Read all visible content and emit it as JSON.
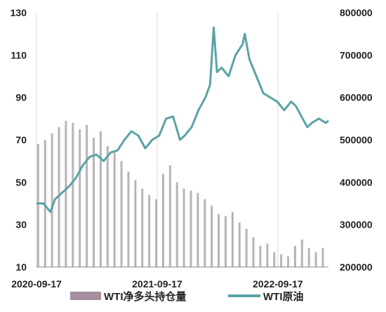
{
  "chart_data": {
    "type": "line",
    "title": "",
    "xlabel": "",
    "ylabel": "",
    "x_tick_labels": [
      "2020-09-17",
      "2021-09-17",
      "2022-09-17"
    ],
    "x_range": [
      "2020-09-17",
      "2023-02-17"
    ],
    "y_left": {
      "ticks": [
        10,
        30,
        50,
        70,
        90,
        110,
        130
      ],
      "range": [
        10,
        130
      ]
    },
    "y_right": {
      "ticks": [
        200000,
        300000,
        400000,
        500000,
        600000,
        700000,
        800000
      ],
      "range": [
        200000,
        800000
      ]
    },
    "grid": "vertical",
    "legend_position": "bottom",
    "colors": {
      "bar": "#b9b2b9",
      "bar_legend": "#a38f9f",
      "line": "#5aa3a6"
    },
    "series": [
      {
        "name": "WTI净多头持仓量",
        "type": "bar",
        "axis": "right",
        "x": [
          "2020-09-22",
          "2020-10-13",
          "2020-11-03",
          "2020-11-24",
          "2020-12-15",
          "2021-01-05",
          "2021-01-26",
          "2021-02-16",
          "2021-03-09",
          "2021-03-30",
          "2021-04-20",
          "2021-05-11",
          "2021-06-01",
          "2021-06-22",
          "2021-07-13",
          "2021-08-03",
          "2021-08-24",
          "2021-09-14",
          "2021-10-05",
          "2021-10-26",
          "2021-11-16",
          "2021-12-07",
          "2021-12-28",
          "2022-01-18",
          "2022-02-08",
          "2022-03-01",
          "2022-03-22",
          "2022-04-12",
          "2022-05-03",
          "2022-05-24",
          "2022-06-14",
          "2022-07-05",
          "2022-07-26",
          "2022-08-16",
          "2022-09-06",
          "2022-09-27",
          "2022-10-18",
          "2022-11-08",
          "2022-11-29",
          "2022-12-20",
          "2023-01-10",
          "2023-01-31"
        ],
        "values": [
          490000,
          500000,
          515000,
          530000,
          545000,
          540000,
          525000,
          535000,
          505000,
          520000,
          485000,
          470000,
          450000,
          425000,
          405000,
          385000,
          370000,
          360000,
          420000,
          440000,
          400000,
          385000,
          380000,
          375000,
          360000,
          345000,
          325000,
          320000,
          330000,
          305000,
          290000,
          270000,
          250000,
          255000,
          235000,
          230000,
          225000,
          250000,
          265000,
          245000,
          235000,
          245000
        ]
      },
      {
        "name": "WTI原油",
        "type": "line",
        "axis": "left",
        "x": [
          "2020-09-17",
          "2020-10-08",
          "2020-10-29",
          "2020-11-12",
          "2020-12-03",
          "2020-12-24",
          "2021-01-14",
          "2021-02-04",
          "2021-02-25",
          "2021-03-18",
          "2021-04-08",
          "2021-04-29",
          "2021-05-20",
          "2021-06-10",
          "2021-07-01",
          "2021-07-22",
          "2021-08-12",
          "2021-09-02",
          "2021-09-23",
          "2021-10-14",
          "2021-11-04",
          "2021-11-25",
          "2021-12-09",
          "2021-12-30",
          "2022-01-20",
          "2022-02-10",
          "2022-02-24",
          "2022-03-07",
          "2022-03-17",
          "2022-03-31",
          "2022-04-21",
          "2022-05-12",
          "2022-06-02",
          "2022-06-09",
          "2022-06-23",
          "2022-07-14",
          "2022-08-04",
          "2022-08-25",
          "2022-09-15",
          "2022-10-06",
          "2022-10-27",
          "2022-11-10",
          "2022-12-01",
          "2022-12-15",
          "2022-12-29",
          "2023-01-19",
          "2023-02-09",
          "2023-02-17"
        ],
        "values": [
          40,
          40,
          36,
          42,
          45,
          48,
          52,
          58,
          62,
          63,
          60,
          64,
          65,
          70,
          74,
          72,
          66,
          70,
          72,
          80,
          81,
          70,
          72,
          76,
          84,
          90,
          96,
          123,
          102,
          104,
          100,
          110,
          115,
          120,
          108,
          100,
          92,
          90,
          88,
          84,
          88,
          86,
          80,
          76,
          78,
          80,
          78,
          79
        ]
      }
    ]
  }
}
